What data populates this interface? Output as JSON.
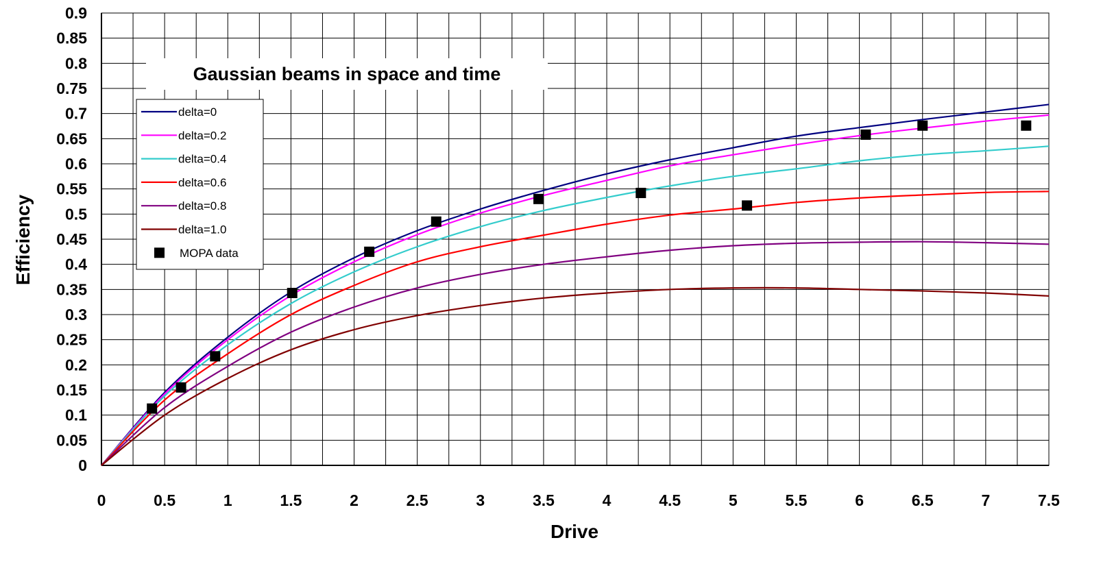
{
  "chart_data": {
    "type": "line",
    "title": "Gaussian beams in space and time",
    "xlabel": "Drive",
    "ylabel": "Efficiency",
    "xlim": [
      0,
      7.5
    ],
    "ylim": [
      0,
      0.9
    ],
    "xticks": [
      "0",
      "0.5",
      "1",
      "1.5",
      "2",
      "2.5",
      "3",
      "3.5",
      "4",
      "4.5",
      "5",
      "5.5",
      "6",
      "6.5",
      "7",
      "7.5"
    ],
    "yticks": [
      "0",
      "0.05",
      "0.1",
      "0.15",
      "0.2",
      "0.25",
      "0.3",
      "0.35",
      "0.4",
      "0.45",
      "0.5",
      "0.55",
      "0.6",
      "0.65",
      "0.7",
      "0.75",
      "0.8",
      "0.85",
      "0.9"
    ],
    "grid": true,
    "legend_position": "top-left",
    "series": [
      {
        "name": "delta=0",
        "kind": "line",
        "color": "#000080",
        "x": [
          0,
          0.5,
          1,
          1.5,
          2,
          2.5,
          3,
          3.5,
          4,
          4.5,
          5,
          5.5,
          6,
          6.5,
          7,
          7.5
        ],
        "y": [
          0,
          0.145,
          0.255,
          0.345,
          0.413,
          0.467,
          0.51,
          0.547,
          0.58,
          0.608,
          0.632,
          0.655,
          0.672,
          0.688,
          0.703,
          0.718
        ]
      },
      {
        "name": "delta=0.2",
        "kind": "line",
        "color": "#FF00FF",
        "x": [
          0,
          0.5,
          1,
          1.5,
          2,
          2.5,
          3,
          3.5,
          4,
          4.5,
          5,
          5.5,
          6,
          6.5,
          7,
          7.5
        ],
        "y": [
          0,
          0.142,
          0.25,
          0.338,
          0.405,
          0.459,
          0.502,
          0.537,
          0.567,
          0.596,
          0.618,
          0.638,
          0.656,
          0.671,
          0.685,
          0.697
        ]
      },
      {
        "name": "delta=0.4",
        "kind": "line",
        "color": "#33CCCC",
        "x": [
          0,
          0.5,
          1,
          1.5,
          2,
          2.5,
          3,
          3.5,
          4,
          4.5,
          5,
          5.5,
          6,
          6.5,
          7,
          7.5
        ],
        "y": [
          0,
          0.138,
          0.24,
          0.322,
          0.385,
          0.435,
          0.475,
          0.507,
          0.533,
          0.556,
          0.575,
          0.59,
          0.606,
          0.618,
          0.626,
          0.635
        ]
      },
      {
        "name": "delta=0.6",
        "kind": "line",
        "color": "#FF0000",
        "x": [
          0,
          0.5,
          1,
          1.5,
          2,
          2.5,
          3,
          3.5,
          4,
          4.5,
          5,
          5.5,
          6,
          6.5,
          7,
          7.5
        ],
        "y": [
          0,
          0.13,
          0.222,
          0.3,
          0.358,
          0.405,
          0.435,
          0.458,
          0.48,
          0.498,
          0.51,
          0.523,
          0.532,
          0.538,
          0.543,
          0.545
        ]
      },
      {
        "name": "delta=0.8",
        "kind": "line",
        "color": "#800080",
        "x": [
          0,
          0.5,
          1,
          1.5,
          2,
          2.5,
          3,
          3.5,
          4,
          4.5,
          5,
          5.5,
          6,
          6.5,
          7,
          7.5
        ],
        "y": [
          0,
          0.115,
          0.197,
          0.265,
          0.315,
          0.353,
          0.38,
          0.4,
          0.415,
          0.428,
          0.437,
          0.442,
          0.444,
          0.445,
          0.443,
          0.44
        ]
      },
      {
        "name": "delta=1.0",
        "kind": "line",
        "color": "#800000",
        "x": [
          0,
          0.5,
          1,
          1.5,
          2,
          2.5,
          3,
          3.5,
          4,
          4.5,
          5,
          5.5,
          6,
          6.5,
          7,
          7.5
        ],
        "y": [
          0,
          0.1,
          0.173,
          0.23,
          0.27,
          0.298,
          0.318,
          0.333,
          0.343,
          0.35,
          0.353,
          0.353,
          0.35,
          0.347,
          0.343,
          0.337
        ]
      },
      {
        "name": "MOPA data",
        "kind": "scatter",
        "color": "#000000",
        "x": [
          0.4,
          0.63,
          0.9,
          1.51,
          2.12,
          2.65,
          3.46,
          4.27,
          5.11,
          6.05,
          6.5,
          7.32
        ],
        "y": [
          0.113,
          0.155,
          0.217,
          0.343,
          0.425,
          0.485,
          0.53,
          0.542,
          0.517,
          0.658,
          0.676,
          0.676
        ]
      }
    ]
  }
}
